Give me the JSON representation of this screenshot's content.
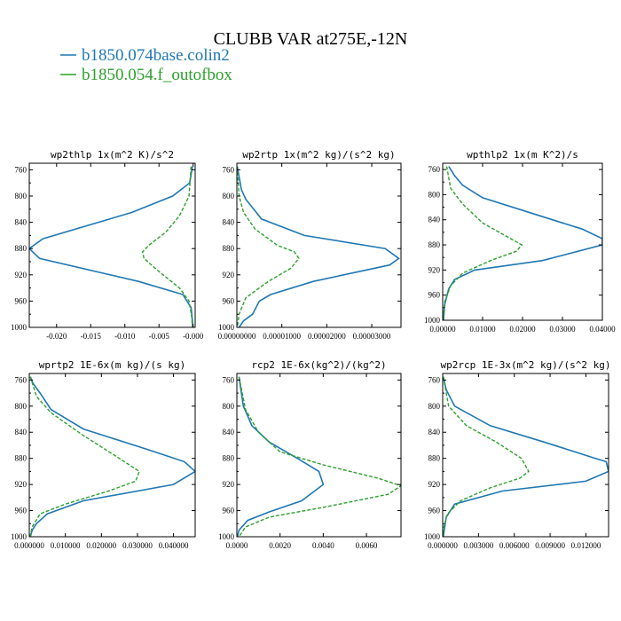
{
  "figure": {
    "title": "CLUBB VAR at275E,-12N",
    "legend": [
      {
        "label": "b1850.074base.colin2",
        "color": "#1f77b4",
        "style": "solid"
      },
      {
        "label": "b1850.054.f_outofbox",
        "color": "#2ca02c",
        "style": "dashed"
      }
    ]
  },
  "chart_data": [
    {
      "type": "line",
      "title": "wp2thlp  1x(m^2 K)/s^2",
      "xlim": [
        -0.024,
        0.0003
      ],
      "xticks": [
        -0.02,
        -0.015,
        -0.01,
        -0.005,
        0.0
      ],
      "xtick_labels": [
        "-0.020",
        "-0.015",
        "-0.010",
        "-0.005",
        "-0.000"
      ],
      "ylim": [
        1000,
        750
      ],
      "yticks": [
        760,
        800,
        840,
        880,
        920,
        960,
        1000
      ],
      "series": [
        {
          "name": "b1850.074base.colin2",
          "color": "#1f77b4",
          "style": "solid",
          "x": [
            -0.0001,
            -0.0005,
            -0.003,
            -0.009,
            -0.022,
            -0.024,
            -0.0225,
            -0.008,
            -0.0015,
            -0.0003,
            -0.0001,
            -5e-05
          ],
          "y": [
            755,
            780,
            800,
            825,
            865,
            880,
            895,
            930,
            950,
            970,
            990,
            1000
          ]
        },
        {
          "name": "b1850.054.f_outofbox",
          "color": "#2ca02c",
          "style": "dashed",
          "x": [
            -0.0003,
            -0.0006,
            -0.002,
            -0.004,
            -0.0065,
            -0.0074,
            -0.0072,
            -0.005,
            -0.002,
            -0.0006,
            -0.0002,
            -0.0001
          ],
          "y": [
            755,
            800,
            830,
            855,
            875,
            885,
            895,
            915,
            940,
            960,
            985,
            1000
          ]
        }
      ]
    },
    {
      "type": "line",
      "title": "wp2rtp  1x(m^2 kg)/(s^2 kg)",
      "xlim": [
        0,
        3.65e-05
      ],
      "xticks": [
        0,
        1e-05,
        2e-05,
        3e-05
      ],
      "xtick_labels": [
        "0.00000000",
        "0.00001000",
        "0.00002000",
        "0.00003000"
      ],
      "ylim": [
        1000,
        750
      ],
      "yticks": [
        760,
        800,
        840,
        880,
        920,
        960,
        1000
      ],
      "series": [
        {
          "name": "b1850.074base.colin2",
          "color": "#1f77b4",
          "style": "solid",
          "x": [
            1e-07,
            1e-06,
            2e-06,
            5.5e-06,
            1.5e-05,
            3.3e-05,
            3.6e-05,
            3.4e-05,
            1.7e-05,
            7.5e-06,
            5e-06,
            3.5e-06,
            1.5e-06,
            5e-07
          ],
          "y": [
            755,
            790,
            805,
            835,
            860,
            880,
            895,
            905,
            930,
            950,
            960,
            980,
            990,
            1000
          ]
        },
        {
          "name": "b1850.054.f_outofbox",
          "color": "#2ca02c",
          "style": "dashed",
          "x": [
            1e-07,
            5e-07,
            1.5e-06,
            4e-06,
            9e-06,
            1.28e-05,
            1.38e-05,
            1.2e-05,
            7e-06,
            2e-06,
            5e-07,
            1e-07
          ],
          "y": [
            755,
            800,
            825,
            850,
            875,
            885,
            895,
            910,
            930,
            955,
            980,
            1000
          ]
        }
      ]
    },
    {
      "type": "line",
      "title": "wpthlp2  1x(m K^2)/s",
      "xlim": [
        0,
        0.04
      ],
      "xticks": [
        0,
        0.01,
        0.02,
        0.03,
        0.04
      ],
      "xtick_labels": [
        "0.00000",
        "0.01000",
        "0.02000",
        "0.03000",
        "0.04000"
      ],
      "ylim": [
        1000,
        750
      ],
      "yticks": [
        760,
        800,
        840,
        880,
        920,
        960,
        1000
      ],
      "series": [
        {
          "name": "b1850.074base.colin2",
          "color": "#1f77b4",
          "style": "solid",
          "x": [
            0.0015,
            0.003,
            0.005,
            0.01,
            0.025,
            0.035,
            0.04,
            0.04,
            0.025,
            0.008,
            0.003,
            0.0015,
            0.0005,
            0.0002
          ],
          "y": [
            755,
            770,
            785,
            805,
            835,
            855,
            870,
            880,
            905,
            920,
            935,
            950,
            975,
            1000
          ]
        },
        {
          "name": "b1850.054.f_outofbox",
          "color": "#2ca02c",
          "style": "dashed",
          "x": [
            0.001,
            0.002,
            0.005,
            0.01,
            0.017,
            0.0198,
            0.0185,
            0.012,
            0.005,
            0.002,
            0.0005,
            0.0001
          ],
          "y": [
            755,
            790,
            815,
            845,
            870,
            880,
            890,
            905,
            925,
            945,
            970,
            1000
          ]
        }
      ]
    },
    {
      "type": "line",
      "title": "wprtp2  1E-6x(m kg)/(s kg)",
      "xlim": [
        0,
        0.046
      ],
      "xticks": [
        0,
        0.01,
        0.02,
        0.03,
        0.04
      ],
      "xtick_labels": [
        "0.000000",
        "0.010000",
        "0.020000",
        "0.030000",
        "0.040000"
      ],
      "ylim": [
        1000,
        750
      ],
      "yticks": [
        760,
        800,
        840,
        880,
        920,
        960,
        1000
      ],
      "series": [
        {
          "name": "b1850.074base.colin2",
          "color": "#1f77b4",
          "style": "solid",
          "x": [
            0.0003,
            0.001,
            0.003,
            0.006,
            0.015,
            0.032,
            0.043,
            0.046,
            0.04,
            0.015,
            0.005,
            0.002,
            0.0008,
            0.0003
          ],
          "y": [
            755,
            765,
            780,
            805,
            835,
            865,
            885,
            900,
            920,
            945,
            965,
            980,
            990,
            1000
          ]
        },
        {
          "name": "b1850.054.f_outofbox",
          "color": "#2ca02c",
          "style": "dashed",
          "x": [
            0.0003,
            0.002,
            0.006,
            0.015,
            0.025,
            0.0305,
            0.0295,
            0.022,
            0.01,
            0.003,
            0.0008,
            0.0002
          ],
          "y": [
            755,
            785,
            810,
            845,
            880,
            900,
            915,
            930,
            950,
            965,
            985,
            1000
          ]
        }
      ]
    },
    {
      "type": "line",
      "title": "rcp2  1E-6x(kg^2)/(kg^2)",
      "xlim": [
        0,
        0.0076
      ],
      "xticks": [
        0,
        0.002,
        0.004,
        0.006
      ],
      "xtick_labels": [
        "0.0000",
        "0.0020",
        "0.0040",
        "0.0060"
      ],
      "ylim": [
        1000,
        750
      ],
      "yticks": [
        760,
        800,
        840,
        880,
        920,
        960,
        1000
      ],
      "series": [
        {
          "name": "b1850.074base.colin2",
          "color": "#1f77b4",
          "style": "solid",
          "x": [
            0.0001,
            0.0003,
            0.0007,
            0.0015,
            0.0028,
            0.0038,
            0.004,
            0.003,
            0.0015,
            0.0005,
            0.0001,
            3e-05
          ],
          "y": [
            755,
            800,
            830,
            855,
            880,
            900,
            920,
            945,
            962,
            975,
            990,
            1000
          ]
        },
        {
          "name": "b1850.054.f_outofbox",
          "color": "#2ca02c",
          "style": "dashed",
          "x": [
            0.0001,
            0.0004,
            0.001,
            0.002,
            0.004,
            0.0065,
            0.0076,
            0.007,
            0.004,
            0.0015,
            0.0004,
            0.0001
          ],
          "y": [
            755,
            805,
            840,
            870,
            890,
            910,
            922,
            935,
            955,
            970,
            985,
            1000
          ]
        }
      ]
    },
    {
      "type": "line",
      "title": "wp2rcp  1E-3x(m^2 kg)/(s^2 kg)",
      "xlim": [
        0,
        0.0139
      ],
      "xticks": [
        0,
        0.003,
        0.006,
        0.009,
        0.012
      ],
      "xtick_labels": [
        "0.000000",
        "0.003000",
        "0.006000",
        "0.009000",
        "0.012000"
      ],
      "ylim": [
        1000,
        750
      ],
      "yticks": [
        760,
        800,
        840,
        880,
        920,
        960,
        1000
      ],
      "series": [
        {
          "name": "b1850.074base.colin2",
          "color": "#1f77b4",
          "style": "solid",
          "x": [
            5e-05,
            0.0003,
            0.001,
            0.004,
            0.0085,
            0.0128,
            0.0137,
            0.0139,
            0.012,
            0.005,
            0.001,
            0.0003,
            5e-05
          ],
          "y": [
            755,
            775,
            800,
            830,
            855,
            880,
            885,
            900,
            915,
            930,
            950,
            970,
            1000
          ]
        },
        {
          "name": "b1850.054.f_outofbox",
          "color": "#2ca02c",
          "style": "dashed",
          "x": [
            5e-05,
            0.0005,
            0.002,
            0.0045,
            0.0066,
            0.0072,
            0.0065,
            0.004,
            0.0015,
            0.0004,
            0.0001,
            3e-05
          ],
          "y": [
            755,
            800,
            830,
            855,
            880,
            900,
            910,
            925,
            945,
            965,
            985,
            1000
          ]
        }
      ]
    }
  ]
}
